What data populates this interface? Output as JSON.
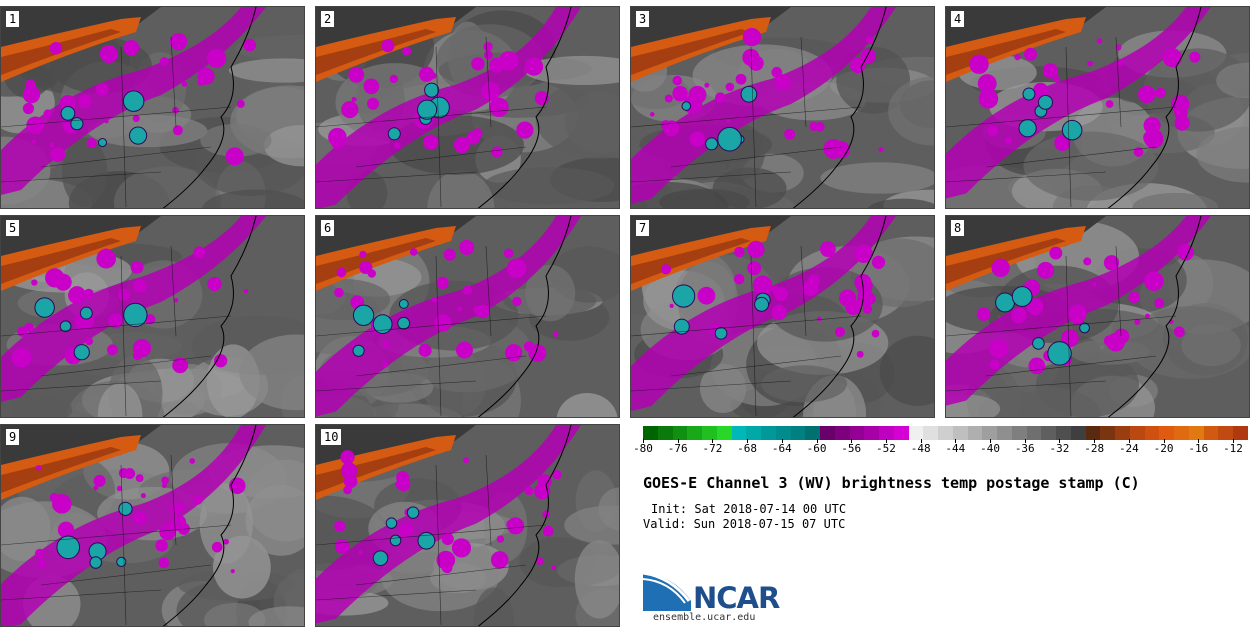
{
  "figure": {
    "title": "GOES-E Channel 3 (WV) brightness temp postage stamp (C)",
    "init": "Init: Sat 2018-07-14 00 UTC",
    "valid": "Valid: Sun 2018-07-15 07 UTC",
    "source_url": "ensemble.ucar.edu",
    "logo_text": "NCAR"
  },
  "panels": [
    {
      "label": "1"
    },
    {
      "label": "2"
    },
    {
      "label": "3"
    },
    {
      "label": "4"
    },
    {
      "label": "5"
    },
    {
      "label": "6"
    },
    {
      "label": "7"
    },
    {
      "label": "8"
    },
    {
      "label": "9"
    },
    {
      "label": "10"
    }
  ],
  "colorbar": {
    "ticks": [
      "-80",
      "-76",
      "-72",
      "-68",
      "-64",
      "-60",
      "-56",
      "-52",
      "-48",
      "-44",
      "-40",
      "-36",
      "-32",
      "-28",
      "-24",
      "-20",
      "-16",
      "-12"
    ],
    "colors": [
      "#006400",
      "#0a7a0a",
      "#109010",
      "#18a818",
      "#20c020",
      "#28d828",
      "#00b8b8",
      "#00a8a8",
      "#009898",
      "#008c8c",
      "#008080",
      "#007070",
      "#6a006a",
      "#7d007d",
      "#930093",
      "#a800a8",
      "#c000c0",
      "#d400d4",
      "#f0f0f0",
      "#e0e0e0",
      "#cfcfcf",
      "#bfbfbf",
      "#afafaf",
      "#9f9f9f",
      "#8f8f8f",
      "#7f7f7f",
      "#6f6f6f",
      "#5f5f5f",
      "#4f4f4f",
      "#3f3f3f",
      "#5a2a10",
      "#7a3410",
      "#9a3e10",
      "#ba4810",
      "#d05010",
      "#e05a10",
      "#e06a10",
      "#e07a10",
      "#d05a10",
      "#c04a10",
      "#b03a10"
    ]
  }
}
